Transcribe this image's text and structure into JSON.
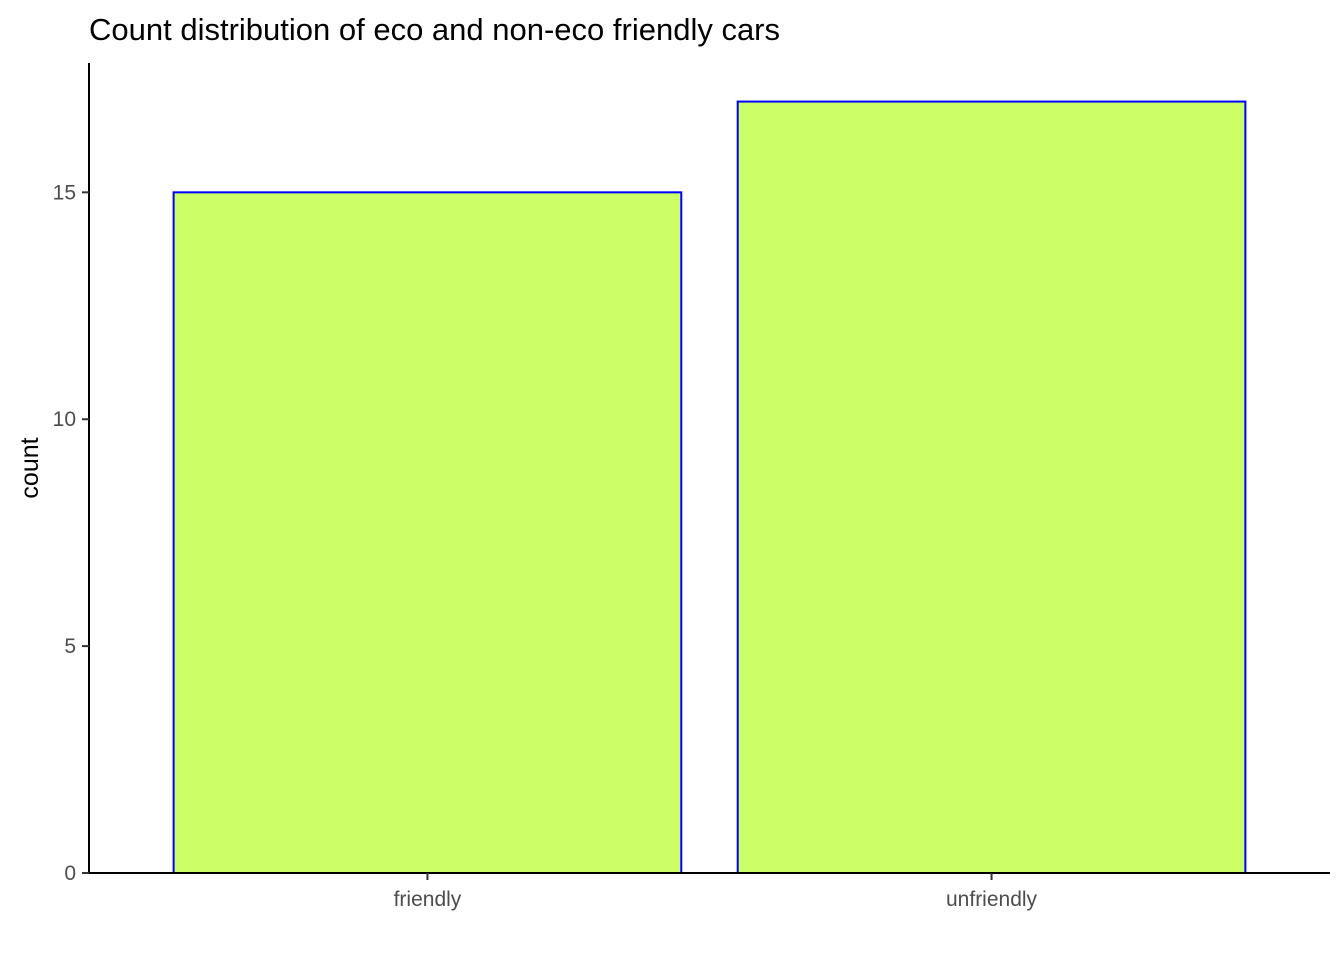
{
  "chart_data": {
    "type": "bar",
    "title": "Count distribution of eco and non-eco friendly cars",
    "xlabel": "",
    "ylabel": "count",
    "categories": [
      "friendly",
      "unfriendly"
    ],
    "values": [
      15,
      17
    ],
    "ylim": [
      0,
      17.85
    ],
    "yticks": [
      0,
      5,
      10,
      15
    ],
    "bar_fill": "#CCFF66",
    "bar_outline": "#0000FF",
    "grid": false,
    "legend": "none"
  }
}
